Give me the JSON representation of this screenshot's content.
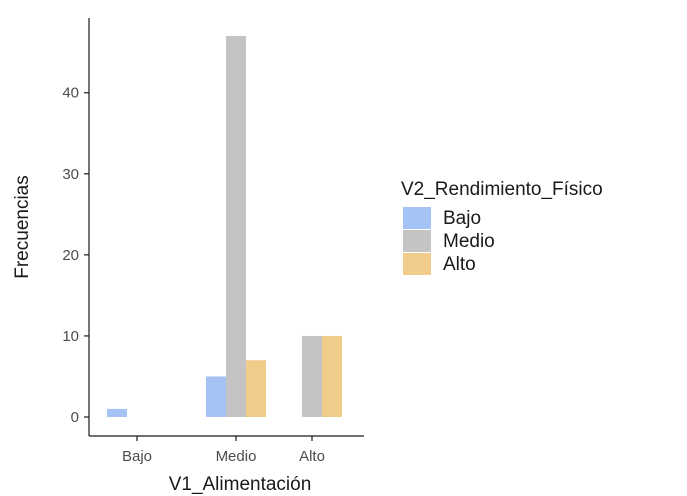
{
  "chart_data": {
    "type": "bar",
    "xlabel": "V1_Alimentación",
    "ylabel": "Frecuencias",
    "categories": [
      "Bajo",
      "Medio",
      "Alto"
    ],
    "yticks": [
      0,
      10,
      20,
      30,
      40
    ],
    "ylim": [
      0,
      48.5
    ],
    "grid": false,
    "legend": {
      "title": "V2_Rendimiento_Físico",
      "placement": "right"
    },
    "series": [
      {
        "name": "Bajo",
        "color": "#a4c2f4",
        "values": [
          1,
          5,
          0
        ]
      },
      {
        "name": "Medio",
        "color": "#c4c4c4",
        "values": [
          0,
          47,
          10
        ]
      },
      {
        "name": "Alto",
        "color": "#f1cb89",
        "values": [
          0,
          7,
          10
        ]
      }
    ]
  }
}
